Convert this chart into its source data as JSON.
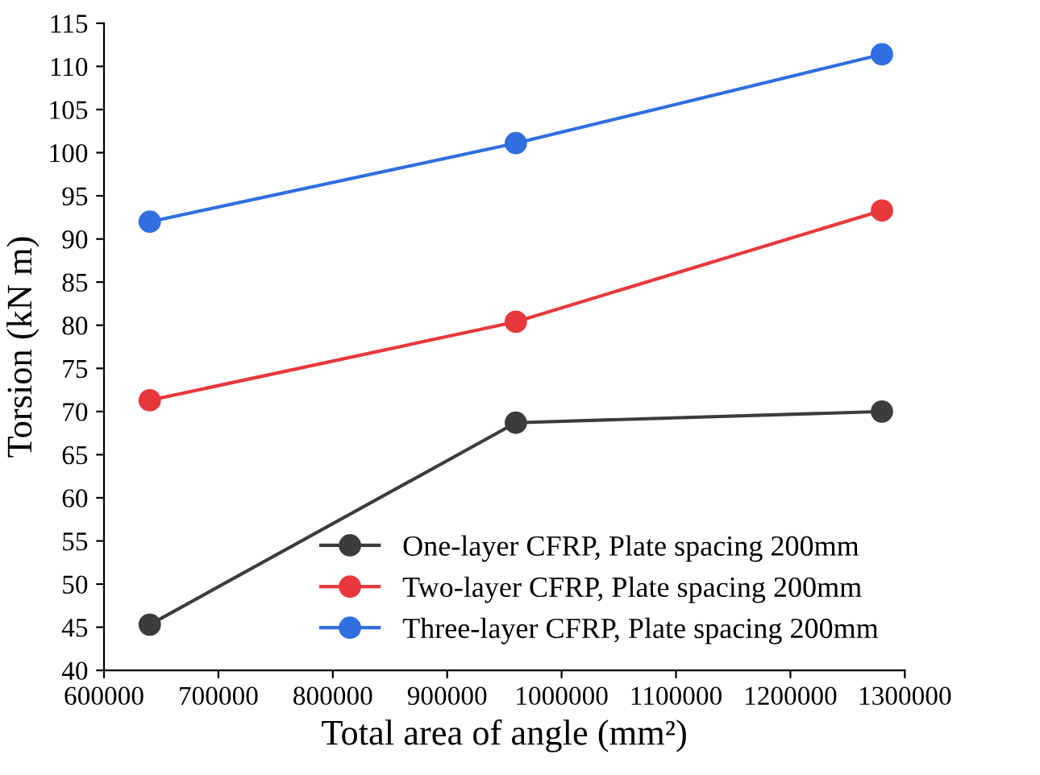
{
  "chart_data": {
    "type": "line",
    "xlabel": "Total area of angle (mm²)",
    "ylabel": "Torsion (kN m)",
    "x": [
      640000,
      960000,
      1280000
    ],
    "series": [
      {
        "name": "One-layer CFRP, Plate spacing 200mm",
        "color": "#3c3c3c",
        "values": [
          45.3,
          68.7,
          70.0
        ]
      },
      {
        "name": "Two-layer CFRP, Plate spacing 200mm",
        "color": "#e8383b",
        "values": [
          71.3,
          80.4,
          93.3
        ]
      },
      {
        "name": "Three-layer CFRP, Plate spacing 200mm",
        "color": "#2f6fdf",
        "values": [
          92.0,
          101.1,
          111.4
        ]
      }
    ],
    "xlim": [
      600000,
      1300000
    ],
    "xticks": [
      600000,
      700000,
      800000,
      900000,
      1000000,
      1100000,
      1200000,
      1300000
    ],
    "ylim": [
      40,
      115
    ],
    "yticks": [
      40,
      45,
      50,
      55,
      60,
      65,
      70,
      75,
      80,
      85,
      90,
      95,
      100,
      105,
      110,
      115
    ],
    "grid": false,
    "legend": "bottom right",
    "marker": "circle",
    "line_style": "solid"
  }
}
